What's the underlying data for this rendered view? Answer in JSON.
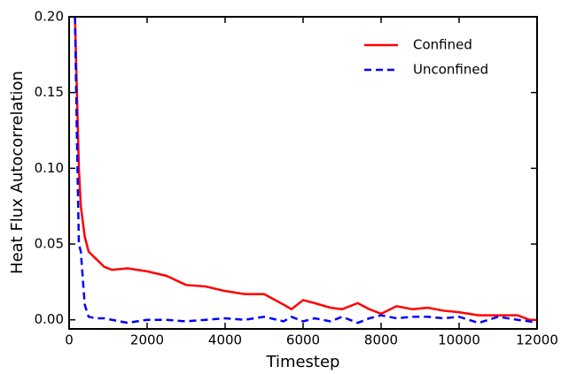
{
  "chart_data": {
    "type": "line",
    "x_label": "Timestep",
    "y_label": "Heat Flux Autocorrelation",
    "x": [
      150,
      200,
      250,
      300,
      400,
      500,
      700,
      900,
      1100,
      1500,
      2000,
      2500,
      3000,
      3500,
      4000,
      4500,
      5000,
      5500,
      5700,
      6000,
      6300,
      6700,
      7000,
      7400,
      7700,
      8000,
      8400,
      8800,
      9200,
      9600,
      10000,
      10500,
      11000,
      11500,
      11800,
      12000
    ],
    "series": [
      {
        "name": "Confined",
        "color": "#ff0000",
        "dash": "solid",
        "values": [
          0.2,
          0.15,
          0.1,
          0.075,
          0.055,
          0.045,
          0.04,
          0.035,
          0.033,
          0.034,
          0.032,
          0.029,
          0.023,
          0.022,
          0.019,
          0.017,
          0.017,
          0.01,
          0.007,
          0.013,
          0.011,
          0.008,
          0.007,
          0.011,
          0.007,
          0.004,
          0.009,
          0.007,
          0.008,
          0.006,
          0.005,
          0.003,
          0.003,
          0.003,
          0.0,
          0.0
        ]
      },
      {
        "name": "Unconfined",
        "color": "#0000ff",
        "dash": "dashed",
        "values": [
          0.2,
          0.12,
          0.05,
          0.045,
          0.01,
          0.002,
          0.001,
          0.001,
          0.0,
          -0.002,
          0.0,
          0.0,
          -0.001,
          0.0,
          0.001,
          0.0,
          0.002,
          -0.001,
          0.002,
          -0.001,
          0.001,
          -0.001,
          0.002,
          -0.002,
          0.001,
          0.003,
          0.001,
          0.002,
          0.002,
          0.001,
          0.002,
          -0.002,
          0.002,
          0.0,
          -0.001,
          -0.002
        ]
      }
    ],
    "xlim": [
      0,
      12000
    ],
    "xticks": [
      0,
      2000,
      4000,
      6000,
      8000,
      10000,
      12000
    ],
    "ylim": [
      -0.006,
      0.2
    ],
    "yticks": [
      {
        "value": 0,
        "label": "0.00"
      },
      {
        "value": 0.05,
        "label": "0.05"
      },
      {
        "value": 0.1,
        "label": "0.10"
      },
      {
        "value": 0.15,
        "label": "0.15"
      },
      {
        "value": 0.2,
        "label": "0.20"
      }
    ],
    "legend": "upper right"
  }
}
